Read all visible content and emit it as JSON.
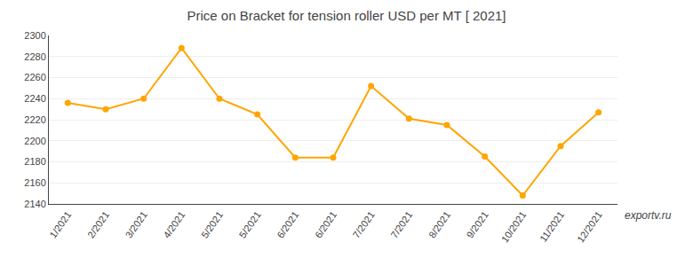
{
  "chart_data": {
    "type": "line",
    "title": "Price on Bracket for tension roller USD per MT [ 2021]",
    "categories": [
      "1/2021",
      "2/2021",
      "3/2021",
      "4/2021",
      "5/2021",
      "5/2021",
      "6/2021",
      "6/2021",
      "7/2021",
      "7/2021",
      "8/2021",
      "9/2021",
      "10/2021",
      "11/2021",
      "12/2021"
    ],
    "values": [
      2236,
      2230,
      2240,
      2288,
      2240,
      2225,
      2184,
      2184,
      2252,
      2221,
      2215,
      2185,
      2148,
      2195,
      2227
    ],
    "color": "#FFA500",
    "marker": "circle",
    "line_style": "solid",
    "ylim": [
      2140,
      2300
    ],
    "yticks": [
      2140,
      2160,
      2180,
      2200,
      2220,
      2240,
      2260,
      2280,
      2300
    ],
    "grid": true,
    "annotations": [
      "exportv.ru"
    ]
  }
}
